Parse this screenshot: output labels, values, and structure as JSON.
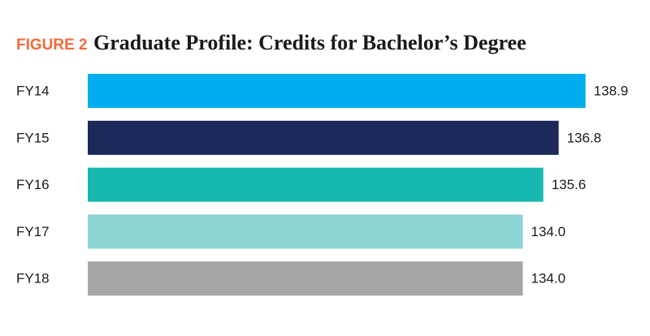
{
  "chart_data": {
    "type": "barh",
    "figure_label": "FIGURE 2",
    "title": "Graduate Profile: Credits for Bachelor’s Degree",
    "categories": [
      "FY14",
      "FY15",
      "FY16",
      "FY17",
      "FY18"
    ],
    "values": [
      138.9,
      136.8,
      135.6,
      134.0,
      134.0
    ],
    "value_labels": [
      "138.9",
      "136.8",
      "135.6",
      "134.0",
      "134.0"
    ],
    "colors": [
      "#00aeef",
      "#1c2a5a",
      "#17b8b0",
      "#8dd3d3",
      "#a7a6a7"
    ],
    "xlim": [
      100,
      140
    ]
  }
}
